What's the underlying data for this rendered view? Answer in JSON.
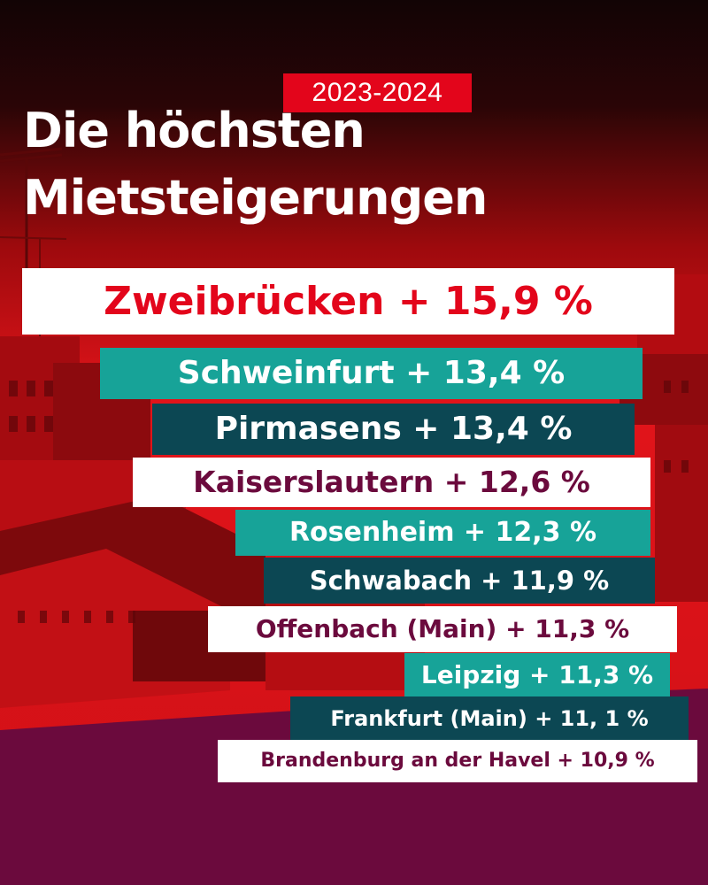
{
  "year": "2023-2024",
  "headline": {
    "line1": "Die höchsten",
    "line2": "Mietsteigerungen"
  },
  "rankings": [
    {
      "text": "Zweibrücken + 15,9 %",
      "style": "white-red"
    },
    {
      "text": "Schweinfurt + 13,4 %",
      "style": "teal"
    },
    {
      "text": "Pirmasens + 13,4 %",
      "style": "navy"
    },
    {
      "text": "Kaiserslautern + 12,6 %",
      "style": "white-plum"
    },
    {
      "text": "Rosenheim + 12,3 %",
      "style": "teal"
    },
    {
      "text": "Schwabach + 11,9 %",
      "style": "navy"
    },
    {
      "text": "Offenbach (Main) + 11,3 %",
      "style": "white-plum"
    },
    {
      "text": "Leipzig + 11,3 %",
      "style": "teal"
    },
    {
      "text": "Frankfurt (Main) + 11, 1 %",
      "style": "navy"
    },
    {
      "text": "Brandenburg an der Havel + 10,9 %",
      "style": "white-plum"
    }
  ],
  "colors": {
    "red": "#e3051b",
    "plum": "#6b0a3d",
    "teal": "#17a398",
    "navy": "#0c4753",
    "white": "#ffffff"
  }
}
